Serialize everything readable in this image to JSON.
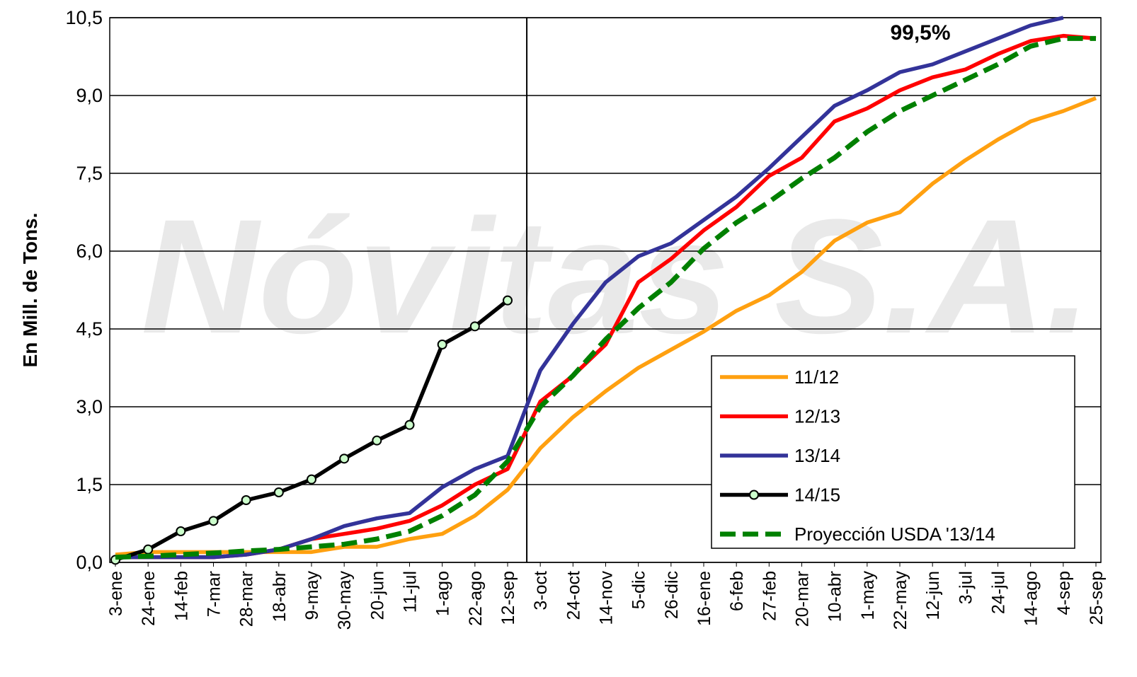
{
  "chart_data": {
    "type": "line",
    "watermark": "Nóvitas S.A.",
    "y_label": "En Mill. de Tons.",
    "annotation": "99,5%",
    "categories": [
      "3-ene",
      "24-ene",
      "14-feb",
      "7-mar",
      "28-mar",
      "18-abr",
      "9-may",
      "30-may",
      "20-jun",
      "11-jul",
      "1-ago",
      "22-ago",
      "12-sep",
      "3-oct",
      "24-oct",
      "14-nov",
      "5-dic",
      "26-dic",
      "16-ene",
      "6-feb",
      "27-feb",
      "20-mar",
      "10-abr",
      "1-may",
      "22-may",
      "12-jun",
      "3-jul",
      "24-jul",
      "14-ago",
      "4-sep",
      "25-sep"
    ],
    "series": [
      {
        "name": "11/12",
        "color": "#ffa010",
        "values": [
          0.15,
          0.2,
          0.2,
          0.2,
          0.2,
          0.2,
          0.2,
          0.3,
          0.3,
          0.45,
          0.55,
          0.9,
          1.4,
          2.2,
          2.8,
          3.3,
          3.75,
          4.1,
          4.45,
          4.85,
          5.15,
          5.6,
          6.2,
          6.55,
          6.75,
          7.3,
          7.75,
          8.15,
          8.5,
          8.7,
          8.95
        ]
      },
      {
        "name": "12/13",
        "color": "#ff0000",
        "values": [
          0.1,
          0.1,
          0.1,
          0.1,
          0.15,
          0.25,
          0.45,
          0.55,
          0.65,
          0.8,
          1.1,
          1.5,
          1.8,
          3.1,
          3.6,
          4.2,
          5.4,
          5.85,
          6.4,
          6.85,
          7.45,
          7.8,
          8.5,
          8.75,
          9.1,
          9.35,
          9.5,
          9.8,
          10.05,
          10.15,
          10.1
        ]
      },
      {
        "name": "13/14",
        "color": "#333399",
        "values": [
          0.1,
          0.1,
          0.1,
          0.1,
          0.15,
          0.25,
          0.45,
          0.7,
          0.85,
          0.95,
          1.45,
          1.8,
          2.05,
          3.7,
          4.6,
          5.4,
          5.9,
          6.15,
          6.6,
          7.05,
          7.6,
          8.2,
          8.8,
          9.1,
          9.45,
          9.6,
          9.85,
          10.1,
          10.35,
          10.5,
          null
        ]
      },
      {
        "name": "14/15",
        "color": "#000000",
        "marker_color": "#ccffcc",
        "markers": true,
        "values": [
          0.05,
          0.25,
          0.6,
          0.8,
          1.2,
          1.35,
          1.6,
          2.0,
          2.35,
          2.65,
          4.2,
          4.55,
          5.05,
          null,
          null,
          null,
          null,
          null,
          null,
          null,
          null,
          null,
          null,
          null,
          null,
          null,
          null,
          null,
          null,
          null,
          null
        ]
      },
      {
        "name": "Proyección USDA '13/14",
        "color": "#008000",
        "dashed": true,
        "values": [
          0.1,
          0.12,
          0.15,
          0.18,
          0.22,
          0.25,
          0.3,
          0.35,
          0.45,
          0.6,
          0.9,
          1.3,
          1.95,
          3.0,
          3.6,
          4.3,
          4.9,
          5.4,
          6.05,
          6.55,
          6.95,
          7.4,
          7.8,
          8.3,
          8.7,
          9.0,
          9.3,
          9.6,
          9.95,
          10.1,
          10.1
        ]
      }
    ],
    "ylim": [
      0,
      10.5
    ],
    "yticks": [
      {
        "value": 0,
        "label": "0,0"
      },
      {
        "value": 1.5,
        "label": "1,5"
      },
      {
        "value": 3,
        "label": "3,0"
      },
      {
        "value": 4.5,
        "label": "4,5"
      },
      {
        "value": 6,
        "label": "6,0"
      },
      {
        "value": 7.5,
        "label": "7,5"
      },
      {
        "value": 9,
        "label": "9,0"
      },
      {
        "value": 10.5,
        "label": "10,5"
      }
    ],
    "grid": true,
    "legend": "lower right"
  }
}
